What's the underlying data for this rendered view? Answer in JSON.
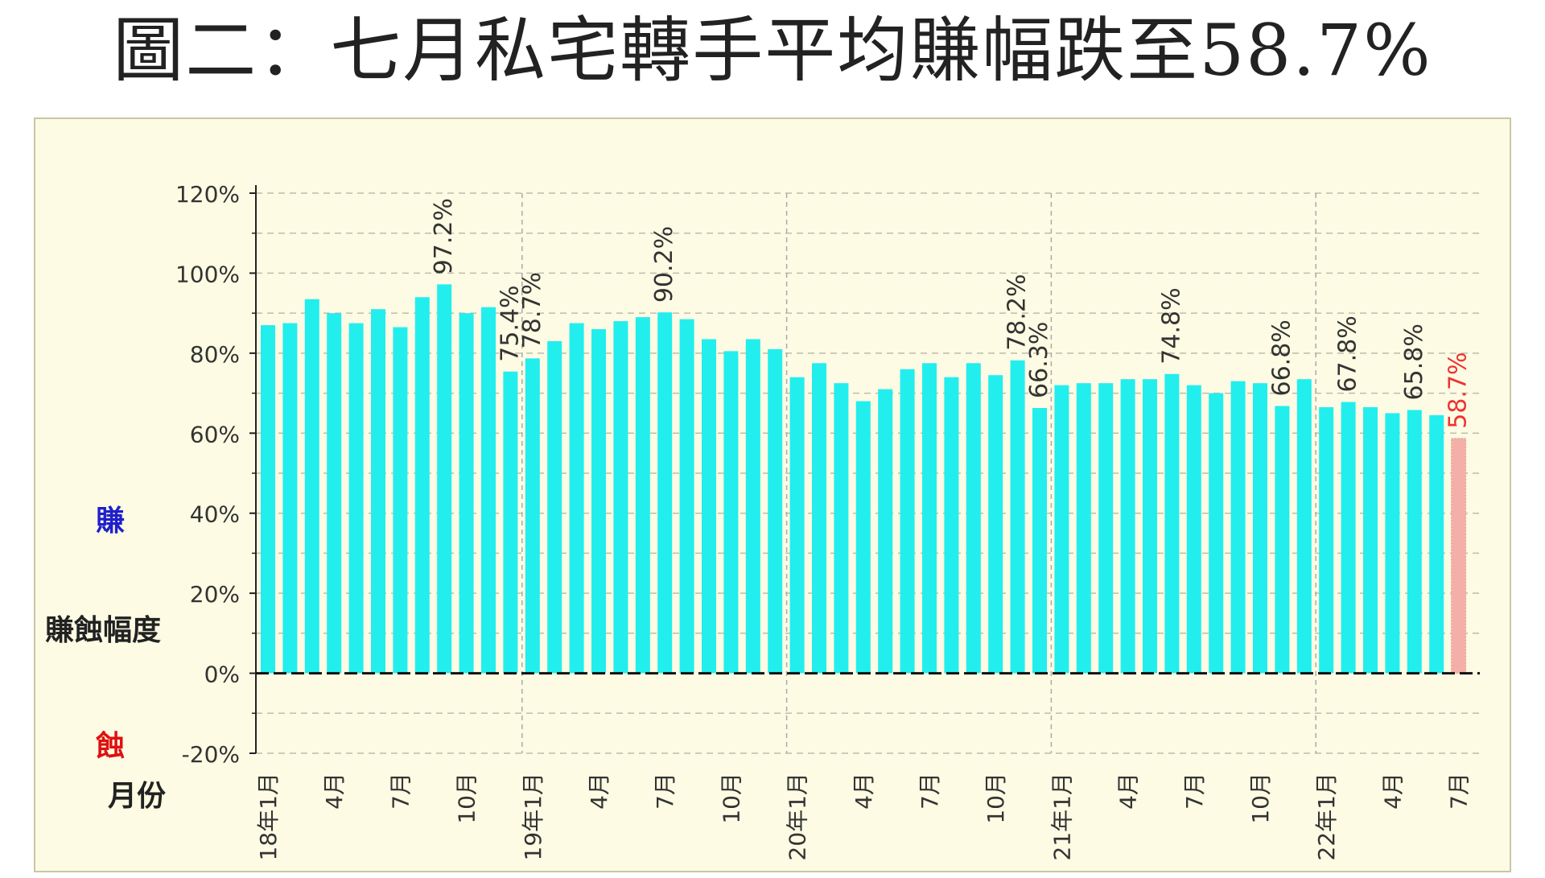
{
  "title": "圖二：七月私宅轉手平均賺幅跌至58.7%",
  "side_labels": {
    "gain": "賺",
    "gain_color": "#1f1fcc",
    "loss": "蝕",
    "loss_color": "#dd1111",
    "ylabel": "賺蝕幅度",
    "xlabel": "月份"
  },
  "chart_data": {
    "type": "bar",
    "title": "",
    "ylabel": "賺蝕幅度",
    "xlabel": "月份",
    "ylim": [
      -20,
      120
    ],
    "ytick_step": 20,
    "ytick_labels": [
      "120%",
      "100%",
      "80%",
      "60%",
      "40%",
      "20%",
      "0%",
      "-20%"
    ],
    "grid": "dashed",
    "x_tick_labels": [
      {
        "index": 0,
        "label": "18年1月"
      },
      {
        "index": 3,
        "label": "4月"
      },
      {
        "index": 6,
        "label": "7月"
      },
      {
        "index": 9,
        "label": "10月"
      },
      {
        "index": 12,
        "label": "19年1月"
      },
      {
        "index": 15,
        "label": "4月"
      },
      {
        "index": 18,
        "label": "7月"
      },
      {
        "index": 21,
        "label": "10月"
      },
      {
        "index": 24,
        "label": "20年1月"
      },
      {
        "index": 27,
        "label": "4月"
      },
      {
        "index": 30,
        "label": "7月"
      },
      {
        "index": 33,
        "label": "10月"
      },
      {
        "index": 36,
        "label": "21年1月"
      },
      {
        "index": 39,
        "label": "4月"
      },
      {
        "index": 42,
        "label": "7月"
      },
      {
        "index": 45,
        "label": "10月"
      },
      {
        "index": 48,
        "label": "22年1月"
      },
      {
        "index": 51,
        "label": "4月"
      },
      {
        "index": 54,
        "label": "7月"
      }
    ],
    "year_boundaries": [
      12,
      24,
      36,
      48
    ],
    "series": [
      {
        "color": "#22eeee",
        "highlight_color": "#f4b0a8",
        "values": [
          87,
          87.5,
          93.5,
          90,
          87.5,
          91,
          86.5,
          94,
          97.2,
          90,
          91.5,
          75.4,
          78.7,
          83,
          87.5,
          86,
          88,
          89,
          90.2,
          88.5,
          83.5,
          80.5,
          83.5,
          81,
          74,
          77.5,
          72.5,
          68,
          71,
          76,
          77.5,
          74,
          77.5,
          74.5,
          78.2,
          66.3,
          72,
          72.5,
          72.5,
          73.5,
          73.5,
          74.8,
          72,
          70,
          73,
          72.5,
          66.8,
          73.5,
          66.5,
          67.8,
          66.5,
          65,
          65.8,
          64.5,
          58.7
        ]
      }
    ],
    "data_labels": [
      {
        "index": 8,
        "label": "97.2%"
      },
      {
        "index": 11,
        "label": "75.4%"
      },
      {
        "index": 12,
        "label": "78.7%"
      },
      {
        "index": 18,
        "label": "90.2%"
      },
      {
        "index": 34,
        "label": "78.2%"
      },
      {
        "index": 35,
        "label": "66.3%"
      },
      {
        "index": 41,
        "label": "74.8%"
      },
      {
        "index": 46,
        "label": "66.8%"
      },
      {
        "index": 49,
        "label": "67.8%"
      },
      {
        "index": 52,
        "label": "65.8%"
      },
      {
        "index": 54,
        "label": "58.7%",
        "color": "#ee3333"
      }
    ]
  }
}
